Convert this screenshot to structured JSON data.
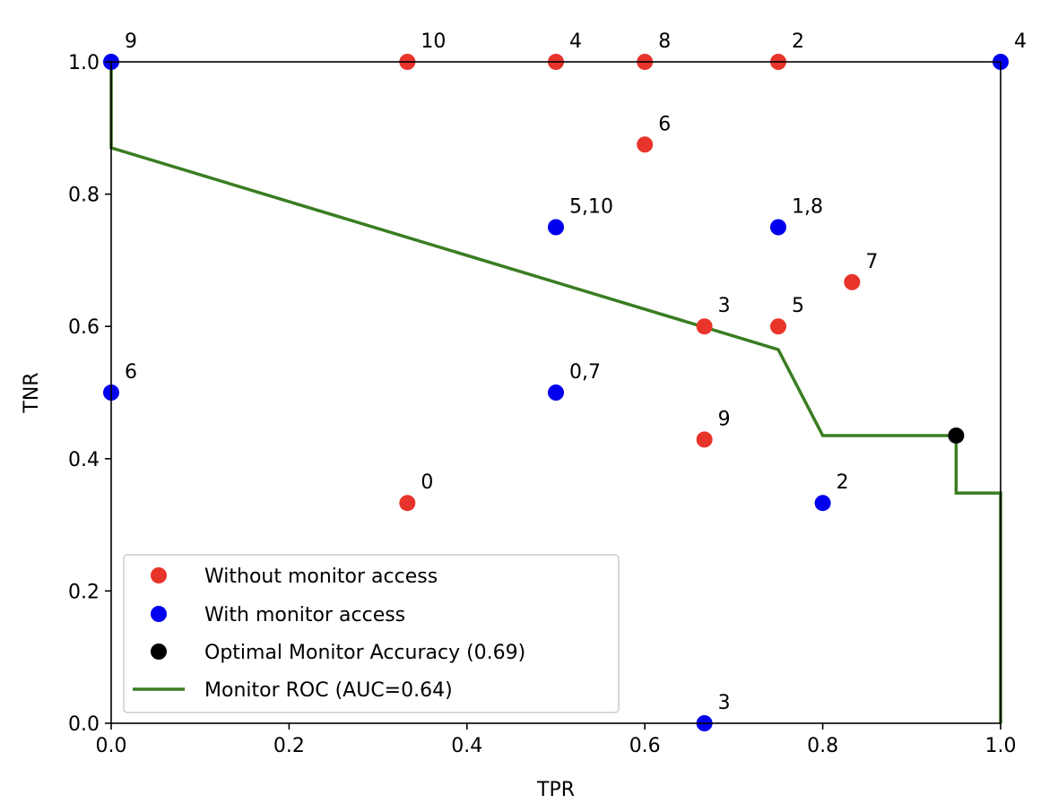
{
  "chart_data": {
    "type": "scatter",
    "title": "",
    "xlabel": "TPR",
    "ylabel": "TNR",
    "xlim": [
      0.0,
      1.0
    ],
    "ylim": [
      0.0,
      1.0
    ],
    "xticks": [
      "0.0",
      "0.2",
      "0.4",
      "0.6",
      "0.8",
      "1.0"
    ],
    "yticks": [
      "0.0",
      "0.2",
      "0.4",
      "0.6",
      "0.8",
      "1.0"
    ],
    "grid": false,
    "legend_position": "lower-left",
    "series": [
      {
        "name": "Without monitor access",
        "kind": "scatter",
        "color": "#e8342a",
        "points": [
          {
            "x": 0.333,
            "y": 1.0,
            "label": "10"
          },
          {
            "x": 0.5,
            "y": 1.0,
            "label": "4"
          },
          {
            "x": 0.6,
            "y": 1.0,
            "label": "8"
          },
          {
            "x": 0.75,
            "y": 1.0,
            "label": "2"
          },
          {
            "x": 0.6,
            "y": 0.875,
            "label": "6"
          },
          {
            "x": 0.833,
            "y": 0.667,
            "label": "7"
          },
          {
            "x": 0.667,
            "y": 0.6,
            "label": "3"
          },
          {
            "x": 0.75,
            "y": 0.6,
            "label": "5"
          },
          {
            "x": 0.667,
            "y": 0.429,
            "label": "9"
          },
          {
            "x": 0.333,
            "y": 0.333,
            "label": "0"
          }
        ]
      },
      {
        "name": "With monitor access",
        "kind": "scatter",
        "color": "#0000ee",
        "points": [
          {
            "x": 0.0,
            "y": 1.0,
            "label": "9"
          },
          {
            "x": 1.0,
            "y": 1.0,
            "label": "4"
          },
          {
            "x": 0.5,
            "y": 0.75,
            "label": "5,10"
          },
          {
            "x": 0.75,
            "y": 0.75,
            "label": "1,8"
          },
          {
            "x": 0.0,
            "y": 0.5,
            "label": "6"
          },
          {
            "x": 0.5,
            "y": 0.5,
            "label": "0,7"
          },
          {
            "x": 0.8,
            "y": 0.333,
            "label": "2"
          },
          {
            "x": 0.667,
            "y": 0.0,
            "label": "3"
          }
        ]
      },
      {
        "name": "Optimal Monitor Accuracy (0.69)",
        "kind": "scatter",
        "color": "#000000",
        "points": [
          {
            "x": 0.95,
            "y": 0.435,
            "label": ""
          }
        ]
      },
      {
        "name": "Monitor ROC (AUC=0.64)",
        "kind": "line",
        "color": "#3a7d22",
        "x": [
          0.0,
          0.0,
          0.75,
          0.8,
          0.95,
          0.95,
          1.0,
          1.0
        ],
        "y": [
          1.0,
          0.87,
          0.565,
          0.435,
          0.435,
          0.348,
          0.348,
          0.0
        ]
      }
    ]
  }
}
